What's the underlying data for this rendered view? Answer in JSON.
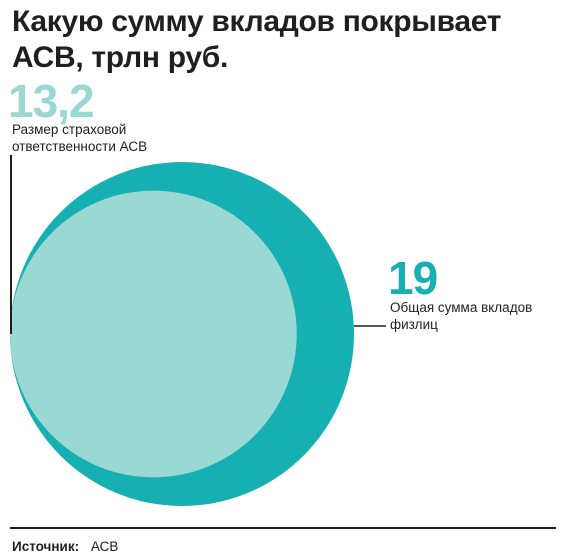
{
  "title": "Какую сумму вкладов покрывает АСВ, трлн руб.",
  "source": {
    "label": "Источник:",
    "value": "АСВ"
  },
  "colors": {
    "outer": "#16b0b3",
    "inner": "#9ad8d4",
    "leader": "#1f1f1f"
  },
  "chart_data": {
    "type": "area-comparison",
    "unit": "трлн руб.",
    "series": [
      {
        "label_lines": [
          "Общая сумма вкладов",
          "физлиц"
        ],
        "value_text": "19",
        "value": 19
      },
      {
        "label_lines": [
          "Размер страховой",
          "ответственности АСВ"
        ],
        "value_text": "13,2",
        "value": 13.2
      }
    ]
  }
}
